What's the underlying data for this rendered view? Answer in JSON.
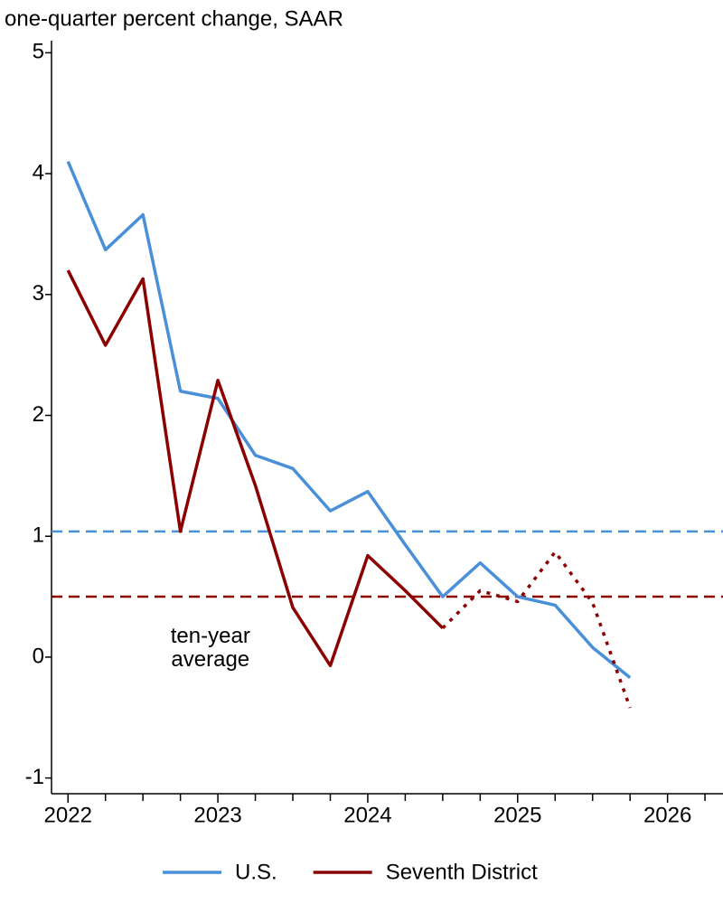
{
  "chart_data": {
    "type": "line",
    "y_axis_label": "one-quarter percent change, SAAR",
    "xlim": [
      2021.89,
      2026.37
    ],
    "xticks": [
      2022,
      2023,
      2024,
      2025,
      2026
    ],
    "xminorticks": [
      2022.25,
      2022.5,
      2022.75,
      2023.25,
      2023.5,
      2023.75,
      2024.25,
      2024.5,
      2024.75,
      2025.25,
      2025.5,
      2025.75,
      2026.25
    ],
    "ylim": [
      -1.13,
      5.1
    ],
    "yticks": [
      -1,
      0,
      1,
      2,
      3,
      4,
      5
    ],
    "x": [
      2022,
      2022.25,
      2022.5,
      2022.75,
      2023,
      2023.25,
      2023.5,
      2023.75,
      2024,
      2024.25,
      2024.5,
      2024.75,
      2025,
      2025.25,
      2025.5,
      2025.75
    ],
    "series": [
      {
        "name": "U.S.",
        "color": "#4a90d9",
        "values": [
          4.1,
          3.37,
          3.66,
          2.2,
          2.14,
          1.67,
          1.56,
          1.21,
          1.37,
          0.93,
          0.5,
          0.78,
          0.5,
          0.43,
          0.08,
          -0.17
        ]
      },
      {
        "name": "Seventh District",
        "color": "#8b0000",
        "dotted_from": 2024.5,
        "values": [
          3.2,
          2.58,
          3.13,
          1.04,
          2.29,
          1.42,
          0.41,
          -0.07,
          0.84,
          0.55,
          0.24,
          0.55,
          0.46,
          0.87,
          0.45,
          -0.42
        ]
      }
    ],
    "reference_lines": [
      {
        "value": 1.04,
        "color": "#4a90d9"
      },
      {
        "value": 0.5,
        "color": "#8b0000"
      }
    ],
    "annotation": {
      "lines": [
        "ten-year",
        "average"
      ],
      "x": 2022.95,
      "y": 0.07
    },
    "legend": "bottom"
  }
}
